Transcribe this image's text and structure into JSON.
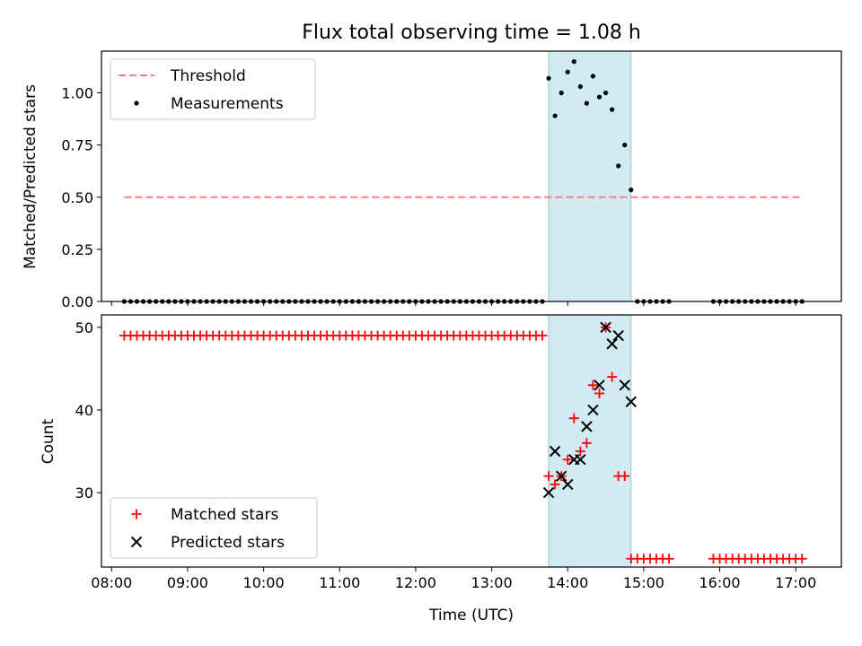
{
  "chart_data": [
    {
      "type": "scatter",
      "title": "Flux total observing time = 1.08 h",
      "ylabel": "Matched/Predicted stars",
      "ylim": [
        0,
        1.2
      ],
      "yticks": [
        "0.00",
        "0.25",
        "0.50",
        "0.75",
        "1.00"
      ],
      "ytick_values": [
        0,
        0.25,
        0.5,
        0.75,
        1.0
      ],
      "xlim": [
        "07:52",
        "17:36"
      ],
      "grid": false,
      "legend_position": "upper-left",
      "shaded_interval": {
        "start": "13:45",
        "end": "14:50",
        "color": "#add8e6"
      },
      "series": [
        {
          "name": "Threshold",
          "kind": "dashed-line",
          "color": "#ff7f7f",
          "x": [
            "08:10",
            "17:05"
          ],
          "y": [
            0.5,
            0.5
          ]
        },
        {
          "name": "Measurements",
          "kind": "points",
          "color": "#000000",
          "x": [
            "08:10",
            "08:15",
            "08:20",
            "08:25",
            "08:30",
            "08:35",
            "08:40",
            "08:45",
            "08:50",
            "08:55",
            "09:00",
            "09:05",
            "09:10",
            "09:15",
            "09:20",
            "09:25",
            "09:30",
            "09:35",
            "09:40",
            "09:45",
            "09:50",
            "09:55",
            "10:00",
            "10:05",
            "10:10",
            "10:15",
            "10:20",
            "10:25",
            "10:30",
            "10:35",
            "10:40",
            "10:45",
            "10:50",
            "10:55",
            "11:00",
            "11:05",
            "11:10",
            "11:15",
            "11:20",
            "11:25",
            "11:30",
            "11:35",
            "11:40",
            "11:45",
            "11:50",
            "11:55",
            "12:00",
            "12:05",
            "12:10",
            "12:15",
            "12:20",
            "12:25",
            "12:30",
            "12:35",
            "12:40",
            "12:45",
            "12:50",
            "12:55",
            "13:00",
            "13:05",
            "13:10",
            "13:15",
            "13:20",
            "13:25",
            "13:30",
            "13:35",
            "13:40",
            "13:45",
            "13:50",
            "13:55",
            "14:00",
            "14:05",
            "14:10",
            "14:15",
            "14:20",
            "14:25",
            "14:30",
            "14:35",
            "14:40",
            "14:45",
            "14:50",
            "14:55",
            "15:00",
            "15:05",
            "15:10",
            "15:15",
            "15:20",
            "15:55",
            "16:00",
            "16:05",
            "16:10",
            "16:15",
            "16:20",
            "16:25",
            "16:30",
            "16:35",
            "16:40",
            "16:45",
            "16:50",
            "16:55",
            "17:00",
            "17:05"
          ],
          "y": [
            0,
            0,
            0,
            0,
            0,
            0,
            0,
            0,
            0,
            0,
            0,
            0,
            0,
            0,
            0,
            0,
            0,
            0,
            0,
            0,
            0,
            0,
            0,
            0,
            0,
            0,
            0,
            0,
            0,
            0,
            0,
            0,
            0,
            0,
            0,
            0,
            0,
            0,
            0,
            0,
            0,
            0,
            0,
            0,
            0,
            0,
            0,
            0,
            0,
            0,
            0,
            0,
            0,
            0,
            0,
            0,
            0,
            0,
            0,
            0,
            0,
            0,
            0,
            0,
            0,
            0,
            0,
            1.07,
            0.89,
            1.0,
            1.1,
            1.15,
            1.03,
            0.95,
            1.08,
            0.98,
            1.0,
            0.92,
            0.65,
            0.75,
            0.535,
            0,
            0,
            0,
            0,
            0,
            0,
            0,
            0,
            0,
            0,
            0,
            0,
            0,
            0,
            0,
            0,
            0,
            0,
            0,
            0,
            0
          ]
        }
      ]
    },
    {
      "type": "scatter",
      "xlabel": "Time (UTC)",
      "ylabel": "Count",
      "ylim": [
        21,
        51.5
      ],
      "yticks": [
        "30",
        "40",
        "50"
      ],
      "ytick_values": [
        30,
        40,
        50
      ],
      "xlim": [
        "07:52",
        "17:36"
      ],
      "xticks": [
        "08:00",
        "09:00",
        "10:00",
        "11:00",
        "12:00",
        "13:00",
        "14:00",
        "15:00",
        "16:00",
        "17:00"
      ],
      "grid": false,
      "legend_position": "lower-left",
      "shaded_interval": {
        "start": "13:45",
        "end": "14:50",
        "color": "#add8e6"
      },
      "series": [
        {
          "name": "Matched stars",
          "marker": "plus",
          "color": "#ff0000",
          "x": [
            "08:10",
            "08:15",
            "08:20",
            "08:25",
            "08:30",
            "08:35",
            "08:40",
            "08:45",
            "08:50",
            "08:55",
            "09:00",
            "09:05",
            "09:10",
            "09:15",
            "09:20",
            "09:25",
            "09:30",
            "09:35",
            "09:40",
            "09:45",
            "09:50",
            "09:55",
            "10:00",
            "10:05",
            "10:10",
            "10:15",
            "10:20",
            "10:25",
            "10:30",
            "10:35",
            "10:40",
            "10:45",
            "10:50",
            "10:55",
            "11:00",
            "11:05",
            "11:10",
            "11:15",
            "11:20",
            "11:25",
            "11:30",
            "11:35",
            "11:40",
            "11:45",
            "11:50",
            "11:55",
            "12:00",
            "12:05",
            "12:10",
            "12:15",
            "12:20",
            "12:25",
            "12:30",
            "12:35",
            "12:40",
            "12:45",
            "12:50",
            "12:55",
            "13:00",
            "13:05",
            "13:10",
            "13:15",
            "13:20",
            "13:25",
            "13:30",
            "13:35",
            "13:40",
            "13:45",
            "13:50",
            "13:55",
            "14:00",
            "14:05",
            "14:10",
            "14:15",
            "14:20",
            "14:25",
            "14:30",
            "14:35",
            "14:40",
            "14:45",
            "14:50",
            "14:55",
            "15:00",
            "15:05",
            "15:10",
            "15:15",
            "15:20",
            "15:55",
            "16:00",
            "16:05",
            "16:10",
            "16:15",
            "16:20",
            "16:25",
            "16:30",
            "16:35",
            "16:40",
            "16:45",
            "16:50",
            "16:55",
            "17:00",
            "17:05"
          ],
          "y": [
            49,
            49,
            49,
            49,
            49,
            49,
            49,
            49,
            49,
            49,
            49,
            49,
            49,
            49,
            49,
            49,
            49,
            49,
            49,
            49,
            49,
            49,
            49,
            49,
            49,
            49,
            49,
            49,
            49,
            49,
            49,
            49,
            49,
            49,
            49,
            49,
            49,
            49,
            49,
            49,
            49,
            49,
            49,
            49,
            49,
            49,
            49,
            49,
            49,
            49,
            49,
            49,
            49,
            49,
            49,
            49,
            49,
            49,
            49,
            49,
            49,
            49,
            49,
            49,
            49,
            49,
            49,
            32,
            31,
            32,
            34,
            39,
            35,
            36,
            43,
            42,
            50,
            44,
            32,
            32,
            22,
            22,
            22,
            22,
            22,
            22,
            22,
            22,
            22,
            22,
            22,
            22,
            22,
            22,
            22,
            22,
            22,
            22,
            22,
            22,
            22,
            22
          ]
        },
        {
          "name": "Predicted stars",
          "marker": "x",
          "color": "#000000",
          "x": [
            "13:45",
            "13:50",
            "13:55",
            "14:00",
            "14:05",
            "14:10",
            "14:15",
            "14:20",
            "14:25",
            "14:30",
            "14:35",
            "14:40",
            "14:45",
            "14:50"
          ],
          "y": [
            30,
            35,
            32,
            31,
            34,
            34,
            38,
            40,
            43,
            50,
            48,
            49,
            43,
            41
          ]
        }
      ]
    }
  ]
}
